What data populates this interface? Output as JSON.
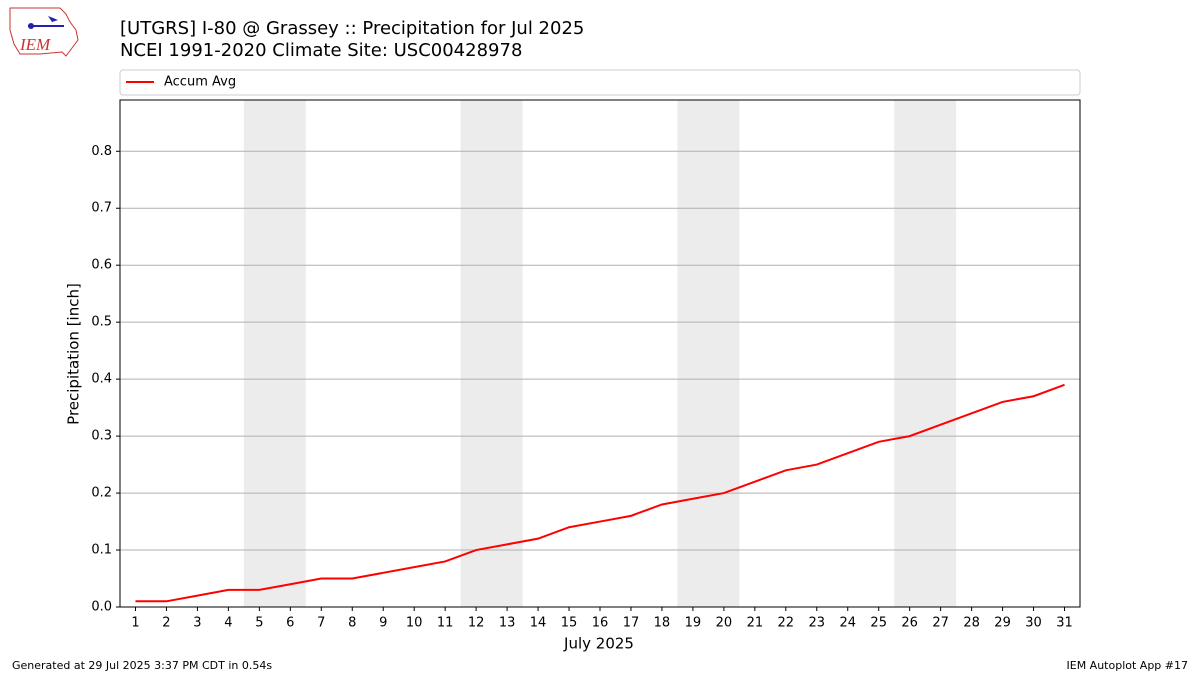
{
  "page": {
    "logo": "IEM",
    "footer_left": "Generated at 29 Jul 2025 3:37 PM CDT in 0.54s",
    "footer_right": "IEM Autoplot App #17"
  },
  "chart_data": {
    "type": "line",
    "title": "[UTGRS] I-80 @ Grassey  :: Precipitation for Jul 2025",
    "subtitle": "NCEI 1991-2020 Climate Site: USC00428978",
    "x_label": "July 2025",
    "y_label": "Precipitation [inch]",
    "x": [
      1,
      2,
      3,
      4,
      5,
      6,
      7,
      8,
      9,
      10,
      11,
      12,
      13,
      14,
      15,
      16,
      17,
      18,
      19,
      20,
      21,
      22,
      23,
      24,
      25,
      26,
      27,
      28,
      29,
      30,
      31
    ],
    "series": [
      {
        "name": "Accum Avg",
        "color": "#ff0000",
        "values": [
          0.01,
          0.01,
          0.02,
          0.03,
          0.03,
          0.04,
          0.05,
          0.05,
          0.06,
          0.07,
          0.08,
          0.1,
          0.11,
          0.12,
          0.14,
          0.15,
          0.16,
          0.18,
          0.19,
          0.2,
          0.22,
          0.24,
          0.25,
          0.27,
          0.29,
          0.3,
          0.32,
          0.34,
          0.36,
          0.37,
          0.39
        ]
      }
    ],
    "shaded_spans": [
      [
        4.5,
        6.5
      ],
      [
        11.5,
        13.5
      ],
      [
        18.5,
        20.5
      ],
      [
        25.5,
        27.5
      ]
    ],
    "shade_color": "#ececec",
    "xlim": [
      0.5,
      31.5
    ],
    "xticks": [
      1,
      2,
      3,
      4,
      5,
      6,
      7,
      8,
      9,
      10,
      11,
      12,
      13,
      14,
      15,
      16,
      17,
      18,
      19,
      20,
      21,
      22,
      23,
      24,
      25,
      26,
      27,
      28,
      29,
      30,
      31
    ],
    "ylim": [
      0,
      0.89
    ],
    "yticks": [
      {
        "value": 0,
        "label": "0.0"
      },
      0.1,
      0.2,
      0.3,
      0.4,
      0.5,
      0.6,
      0.7,
      0.8
    ],
    "grid": true,
    "legend": "top"
  }
}
